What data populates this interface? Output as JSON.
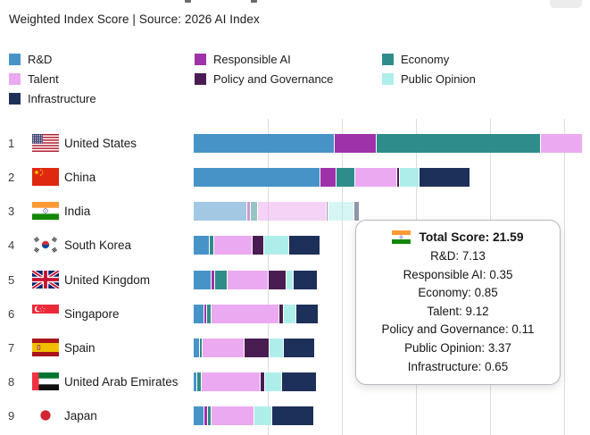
{
  "header": {
    "subtitle": "Weighted Index Score | Source: 2026 AI Index"
  },
  "colors": {
    "rd": "#4793c8",
    "responsible_ai": "#9e32a8",
    "economy": "#2e8c8a",
    "talent": "#eba9f1",
    "policy_governance": "#4a1d52",
    "public_opinion": "#aeeeea",
    "infrastructure": "#1d3059",
    "gridline": "#dcdcdc",
    "text": "#1b1b1b"
  },
  "legend": {
    "items": [
      {
        "label": "R&D",
        "key": "rd",
        "col": 0,
        "row": 0
      },
      {
        "label": "Talent",
        "key": "talent",
        "col": 0,
        "row": 1
      },
      {
        "label": "Infrastructure",
        "key": "infrastructure",
        "col": 0,
        "row": 2
      },
      {
        "label": "Responsible AI",
        "key": "responsible_ai",
        "col": 1,
        "row": 0
      },
      {
        "label": "Policy and Governance",
        "key": "policy_governance",
        "col": 1,
        "row": 1
      },
      {
        "label": "Economy",
        "key": "economy",
        "col": 2,
        "row": 0
      },
      {
        "label": "Public Opinion",
        "key": "public_opinion",
        "col": 2,
        "row": 1
      }
    ]
  },
  "chart_data": {
    "type": "bar",
    "orientation": "horizontal_stacked",
    "title": "Weighted Index Score | Source: 2026 AI Index",
    "series_order": [
      "R&D",
      "Responsible AI",
      "Economy",
      "Talent",
      "Policy and Governance",
      "Public Opinion",
      "Infrastructure"
    ],
    "series_keys": [
      "rd",
      "responsible_ai",
      "economy",
      "talent",
      "policy_governance",
      "public_opinion",
      "infrastructure"
    ],
    "xlim": [
      0,
      53.5
    ],
    "x_gridlines": [
      10,
      20,
      30,
      40,
      50
    ],
    "grid": true,
    "legend_position": "top",
    "rows": [
      {
        "rank": 1,
        "country": "United States",
        "flag": "us",
        "values": [
          18.9,
          5.6,
          22.0,
          5.6,
          0,
          0,
          0
        ],
        "clipped": true
      },
      {
        "rank": 2,
        "country": "China",
        "flag": "cn",
        "values": [
          17.0,
          2.1,
          2.3,
          5.6,
          0.25,
          2.5,
          6.8
        ]
      },
      {
        "rank": 3,
        "country": "India",
        "flag": "in",
        "values": [
          7.13,
          0.35,
          0.85,
          9.12,
          0.11,
          3.37,
          0.65
        ],
        "faded": true,
        "total": 21.59
      },
      {
        "rank": 4,
        "country": "South Korea",
        "flag": "kr",
        "values": [
          2.0,
          0,
          0.5,
          5.1,
          1.45,
          3.2,
          4.1
        ]
      },
      {
        "rank": 5,
        "country": "United Kingdom",
        "flag": "gb",
        "values": [
          2.3,
          0.4,
          1.5,
          5.4,
          2.3,
          0.9,
          3.1
        ]
      },
      {
        "rank": 6,
        "country": "Singapore",
        "flag": "sg",
        "values": [
          1.3,
          0.3,
          0.45,
          9.1,
          0.4,
          1.6,
          2.9
        ]
      },
      {
        "rank": 7,
        "country": "Spain",
        "flag": "es",
        "values": [
          0.7,
          0,
          0.3,
          5.5,
          3.3,
          1.75,
          4.1
        ]
      },
      {
        "rank": 8,
        "country": "United Arab Emirates",
        "flag": "ae",
        "values": [
          0.4,
          0,
          0.45,
          7.8,
          0.5,
          2.2,
          4.6
        ]
      },
      {
        "rank": 9,
        "country": "Japan",
        "flag": "jp",
        "values": [
          1.35,
          0.3,
          0.35,
          5.7,
          0,
          2.3,
          5.5
        ]
      }
    ]
  },
  "tooltip": {
    "country": "India",
    "flag": "in",
    "title": "Total Score: 21.59",
    "metrics": [
      {
        "label": "R&D",
        "value": "7.13"
      },
      {
        "label": "Responsible AI",
        "value": "0.35"
      },
      {
        "label": "Economy",
        "value": "0.85"
      },
      {
        "label": "Talent",
        "value": "9.12"
      },
      {
        "label": "Policy and Governance",
        "value": "0.11"
      },
      {
        "label": "Public Opinion",
        "value": "3.37"
      },
      {
        "label": "Infrastructure",
        "value": "0.65"
      }
    ]
  }
}
